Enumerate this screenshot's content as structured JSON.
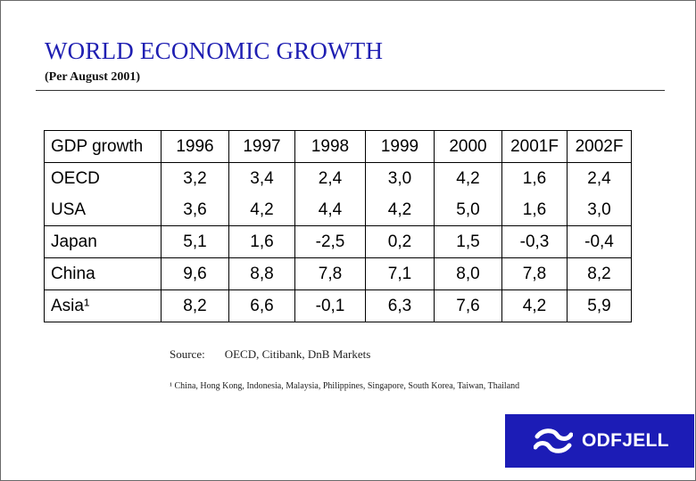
{
  "title": "WORLD ECONOMIC GROWTH",
  "subtitle": "(Per August 2001)",
  "table": {
    "header": [
      "GDP growth",
      "1996",
      "1997",
      "1998",
      "1999",
      "2000",
      "2001F",
      "2002F"
    ],
    "rows": [
      {
        "label": "OECD",
        "values": [
          "3,2",
          "3,4",
          "2,4",
          "3,0",
          "4,2",
          "1,6",
          "2,4"
        ]
      },
      {
        "label": "USA",
        "values": [
          "3,6",
          "4,2",
          "4,4",
          "4,2",
          "5,0",
          "1,6",
          "3,0"
        ]
      },
      {
        "label": "Japan",
        "values": [
          "5,1",
          "1,6",
          "-2,5",
          "0,2",
          "1,5",
          "-0,3",
          "-0,4"
        ]
      },
      {
        "label": "China",
        "values": [
          "9,6",
          "8,8",
          "7,8",
          "7,1",
          "8,0",
          "7,8",
          "8,2"
        ]
      },
      {
        "label": "Asia¹",
        "values": [
          "8,2",
          "6,6",
          "-0,1",
          "6,3",
          "7,6",
          "4,2",
          "5,9"
        ]
      }
    ]
  },
  "source": {
    "label": "Source:",
    "value": "OECD, Citibank, DnB Markets"
  },
  "footnote": "¹ China, Hong Kong, Indonesia, Malaysia, Philippines, Singapore, South Korea, Taiwan, Thailand",
  "logo": {
    "text": "ODFJELL",
    "icon": "odfjell-logo-icon"
  },
  "colors": {
    "title": "#1f1fb2",
    "logo_bg": "#1c1cb6"
  }
}
